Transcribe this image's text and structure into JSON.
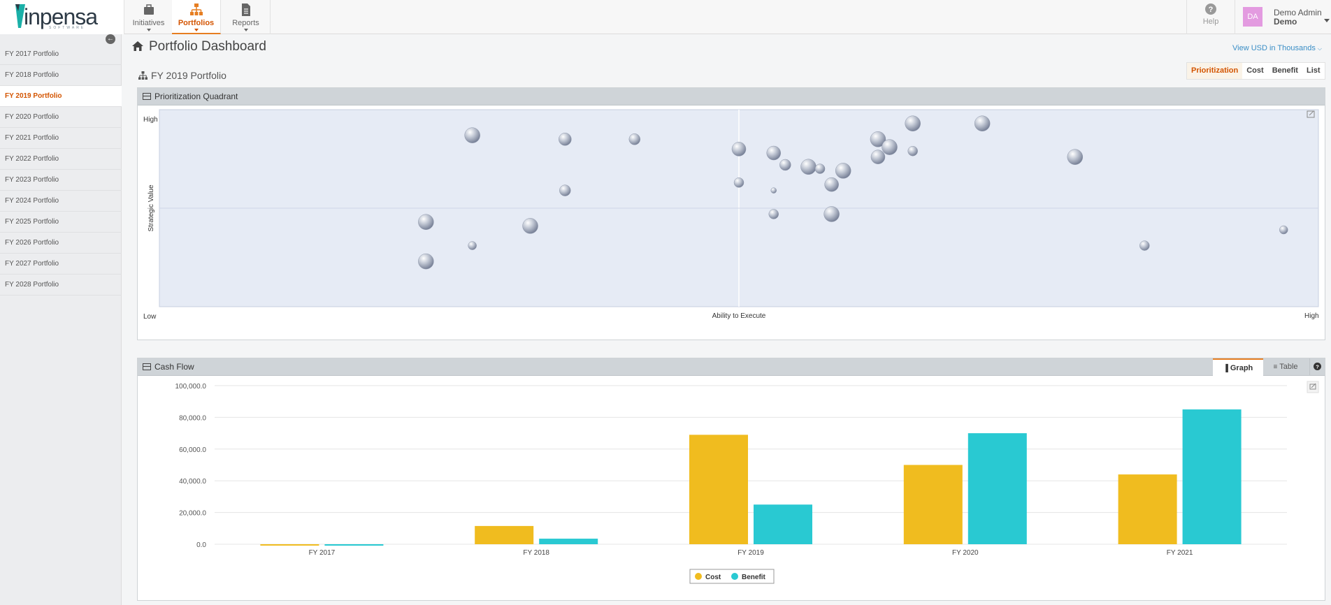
{
  "brand": {
    "logo_text": "inpensa",
    "logo_sub": "SOFTWARE"
  },
  "nav": {
    "items": [
      {
        "label": "Initiatives",
        "icon": "briefcase-icon",
        "active": false
      },
      {
        "label": "Portfolios",
        "icon": "hierarchy-icon",
        "active": true
      },
      {
        "label": "Reports",
        "icon": "document-icon",
        "active": false
      }
    ],
    "help_label": "Help",
    "user": {
      "initials": "DA",
      "name": "Demo Admin",
      "role": "Demo"
    }
  },
  "sidebar": {
    "items": [
      "FY 2017 Portfolio",
      "FY 2018 Portfolio",
      "FY 2019 Portfolio",
      "FY 2020 Portfolio",
      "FY 2021 Portfolio",
      "FY 2022 Portfolio",
      "FY 2023 Portfolio",
      "FY 2024 Portfolio",
      "FY 2025 Portfolio",
      "FY 2026 Portfolio",
      "FY 2027 Portfolio",
      "FY 2028 Portfolio"
    ],
    "active_index": 2
  },
  "header": {
    "title": "Portfolio Dashboard",
    "view_link": "View USD in Thousands",
    "subtitle": "FY 2019 Portfolio",
    "view_tabs": [
      "Prioritization",
      "Cost",
      "Benefit",
      "List"
    ],
    "active_view_tab": 0
  },
  "quadrant": {
    "title": "Prioritization Quadrant",
    "y_high": "High",
    "x_low": "Low",
    "x_high": "High",
    "xlabel": "Ability to Execute",
    "ylabel": "Strategic Value"
  },
  "cashflow": {
    "title": "Cash Flow",
    "tabs": [
      "Graph",
      "Table"
    ],
    "active_tab": 0
  },
  "colors": {
    "accent": "#d35400",
    "cost": "#f0bc1f",
    "benefit": "#29c9d2"
  },
  "chart_data": [
    {
      "type": "scatter",
      "title": "Prioritization Quadrant",
      "xlabel": "Ability to Execute",
      "ylabel": "Strategic Value",
      "xlim": [
        0,
        100
      ],
      "ylim": [
        0,
        100
      ],
      "points": [
        {
          "x": 27,
          "y": 87,
          "r": 11
        },
        {
          "x": 35,
          "y": 85,
          "r": 9
        },
        {
          "x": 41,
          "y": 85,
          "r": 8
        },
        {
          "x": 50,
          "y": 80,
          "r": 10
        },
        {
          "x": 53,
          "y": 78,
          "r": 10
        },
        {
          "x": 54,
          "y": 72,
          "r": 8
        },
        {
          "x": 56,
          "y": 71,
          "r": 11
        },
        {
          "x": 57,
          "y": 70,
          "r": 7
        },
        {
          "x": 59,
          "y": 69,
          "r": 11
        },
        {
          "x": 58,
          "y": 62,
          "r": 10
        },
        {
          "x": 62,
          "y": 85,
          "r": 11
        },
        {
          "x": 63,
          "y": 81,
          "r": 11
        },
        {
          "x": 62,
          "y": 76,
          "r": 10
        },
        {
          "x": 65,
          "y": 93,
          "r": 11
        },
        {
          "x": 65,
          "y": 79,
          "r": 7
        },
        {
          "x": 71,
          "y": 93,
          "r": 11
        },
        {
          "x": 79,
          "y": 76,
          "r": 11
        },
        {
          "x": 35,
          "y": 59,
          "r": 8
        },
        {
          "x": 50,
          "y": 63,
          "r": 7
        },
        {
          "x": 53,
          "y": 59,
          "r": 4
        },
        {
          "x": 23,
          "y": 43,
          "r": 11
        },
        {
          "x": 32,
          "y": 41,
          "r": 11
        },
        {
          "x": 53,
          "y": 47,
          "r": 7
        },
        {
          "x": 58,
          "y": 47,
          "r": 11
        },
        {
          "x": 27,
          "y": 31,
          "r": 6
        },
        {
          "x": 23,
          "y": 23,
          "r": 11
        },
        {
          "x": 85,
          "y": 31,
          "r": 7
        },
        {
          "x": 97,
          "y": 39,
          "r": 6
        }
      ]
    },
    {
      "type": "bar",
      "title": "Cash Flow",
      "categories": [
        "FY 2017",
        "FY 2018",
        "FY 2019",
        "FY 2020",
        "FY 2021"
      ],
      "series": [
        {
          "name": "Cost",
          "values": [
            -200,
            11500,
            69000,
            50000,
            44000
          ]
        },
        {
          "name": "Benefit",
          "values": [
            -900,
            3500,
            25000,
            70000,
            85000
          ]
        }
      ],
      "ylim": [
        0,
        100000
      ],
      "yticks": [
        "0.0",
        "20,000.0",
        "40,000.0",
        "60,000.0",
        "80,000.0",
        "100,000.0"
      ],
      "ytick_values": [
        0,
        20000,
        40000,
        60000,
        80000,
        100000
      ],
      "legend": "bottom-center"
    }
  ]
}
